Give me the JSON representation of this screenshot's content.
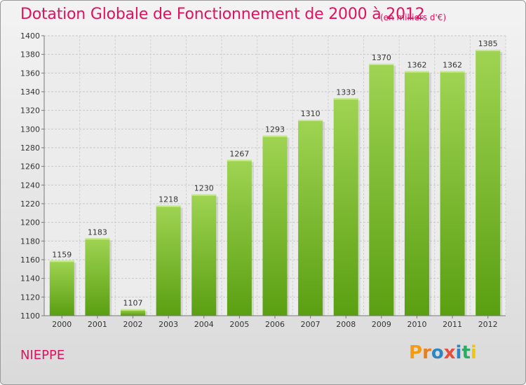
{
  "header": {
    "title": "Dotation Globale de Fonctionnement de 2000 à 2012",
    "unit": "(en milliers d'€)"
  },
  "footer": {
    "city": "NIEPPE",
    "brand": "Proxiti"
  },
  "colors": {
    "accent": "#e0115f",
    "bar_top": "#9fd452",
    "bar_bottom": "#5a9f12",
    "brand_letters": [
      "#f39c12",
      "#e67e22",
      "#2e86c1",
      "#e74c3c",
      "#2e86c1",
      "#27ae60",
      "#f1c40f"
    ]
  },
  "chart_data": {
    "type": "bar",
    "title": "Dotation Globale de Fonctionnement de 2000 à 2012",
    "subtitle": "(en milliers d'€)",
    "categories": [
      "2000",
      "2001",
      "2002",
      "2003",
      "2004",
      "2005",
      "2006",
      "2007",
      "2008",
      "2009",
      "2010",
      "2011",
      "2012"
    ],
    "values": [
      1159,
      1183,
      1107,
      1218,
      1230,
      1267,
      1293,
      1310,
      1333,
      1370,
      1362,
      1362,
      1385
    ],
    "ylim": [
      1100,
      1400
    ],
    "yticks": [
      1100,
      1120,
      1140,
      1160,
      1180,
      1200,
      1220,
      1240,
      1260,
      1280,
      1300,
      1320,
      1340,
      1360,
      1380,
      1400
    ],
    "grid": true
  }
}
